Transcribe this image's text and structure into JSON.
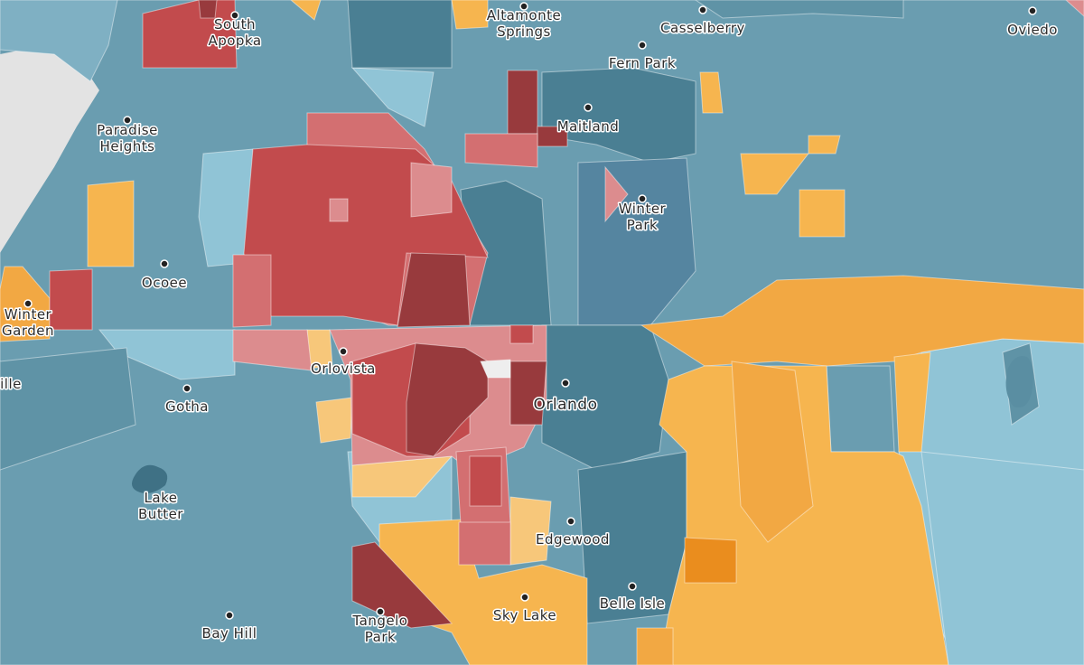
{
  "colors": {
    "blue_light": "#90c4d6",
    "blue_mid": "#6a9db0",
    "blue_dark": "#4a7f93",
    "orange_light": "#f7c77a",
    "orange_mid": "#f2a843",
    "orange_dark": "#ea8d1e",
    "red_light": "#dc8c8e",
    "red_mid": "#c24b4d",
    "red_dark": "#983a3d",
    "gray": "#e3e3e3"
  },
  "places": [
    {
      "name": "South",
      "name2": "Apopka"
    },
    {
      "name": "Altamonte",
      "name2": "Springs"
    },
    {
      "name": "Casselberry"
    },
    {
      "name": "Oviedo"
    },
    {
      "name": "Fern Park"
    },
    {
      "name": "Paradise",
      "name2": "Heights"
    },
    {
      "name": "Maitland"
    },
    {
      "name": "Winter",
      "name2": "Park"
    },
    {
      "name": "Ocoee"
    },
    {
      "name": "Winter",
      "name2": "Garden"
    },
    {
      "name": "Orlovista"
    },
    {
      "name": "Orlando"
    },
    {
      "name": "ille"
    },
    {
      "name": "Gotha"
    },
    {
      "name": "Lake",
      "name2": "Butter"
    },
    {
      "name": "Edgewood"
    },
    {
      "name": "Sky Lake"
    },
    {
      "name": "Belle Isle"
    },
    {
      "name": "Bay Hill"
    },
    {
      "name": "Tangelo",
      "name2": "Park"
    }
  ]
}
